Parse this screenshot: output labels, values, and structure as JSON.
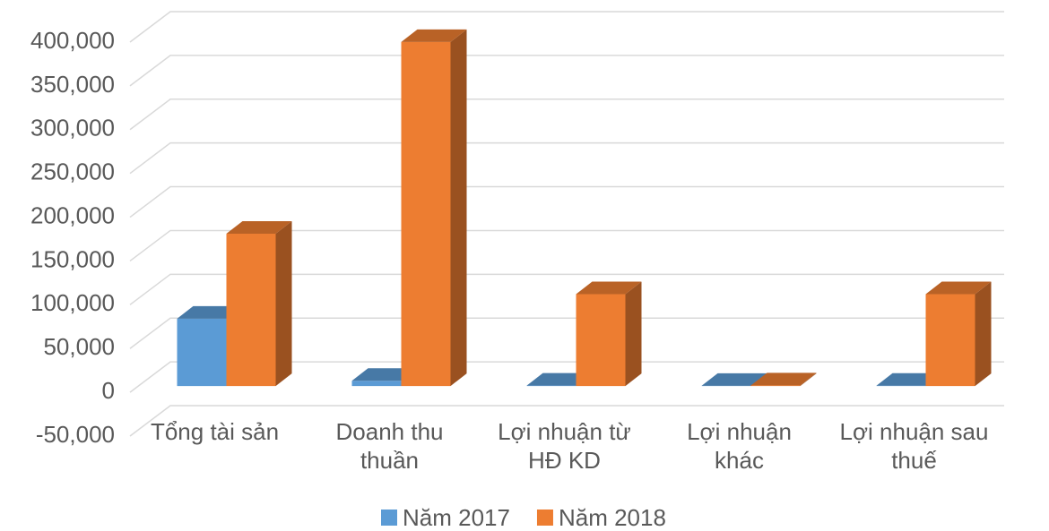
{
  "chart_data": {
    "type": "bar3d",
    "categories": [
      "Tổng tài sản",
      "Doanh thu\nthuần",
      "Lợi nhuận từ\nHĐ KD",
      "Lợi nhuận\nkhác",
      "Lợi nhuận sau\nthuế"
    ],
    "series": [
      {
        "name": "Năm 2017",
        "color": "#5b9bd5",
        "values": [
          77000,
          6000,
          500,
          200,
          400
        ]
      },
      {
        "name": "Năm 2018",
        "color": "#ed7d31",
        "values": [
          174000,
          393000,
          105000,
          800,
          105000
        ]
      }
    ],
    "ylim": [
      -50000,
      400000
    ],
    "yticks": [
      {
        "value": -50000,
        "label": "-50,000"
      },
      0,
      {
        "value": 50000,
        "label": "50,000"
      },
      {
        "value": 100000,
        "label": "100,000"
      },
      {
        "value": 150000,
        "label": "150,000"
      },
      {
        "value": 200000,
        "label": "200,000"
      },
      {
        "value": 250000,
        "label": "250,000"
      },
      {
        "value": 300000,
        "label": "300,000"
      },
      {
        "value": 350000,
        "label": "350,000"
      },
      {
        "value": 400000,
        "label": "400,000"
      }
    ],
    "grid": true,
    "legend": "bottom"
  }
}
